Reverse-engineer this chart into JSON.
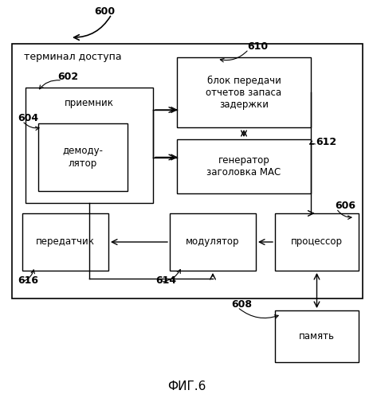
{
  "title": "ФИГ.6",
  "label_600": "600",
  "label_602": "602",
  "label_604": "604",
  "label_606": "606",
  "label_608": "608",
  "label_610": "610",
  "label_612": "612",
  "label_614": "614",
  "label_616": "616",
  "terminal_label": "терминал доступа",
  "block_610_text": "блок передачи\nотчетов запаса\nзадержки",
  "block_612_text": "генератор\nзаголовка МАС",
  "block_602_text": "приемник",
  "block_604_text": "демоду-\nлятор",
  "block_606_text": "процессор",
  "block_608_text": "память",
  "block_614_text": "модулятор",
  "block_616_text": "передатчик",
  "bg_color": "#ffffff",
  "box_facecolor": "#ffffff",
  "box_edgecolor": "#000000",
  "text_color": "#000000",
  "arrow_color": "#000000"
}
